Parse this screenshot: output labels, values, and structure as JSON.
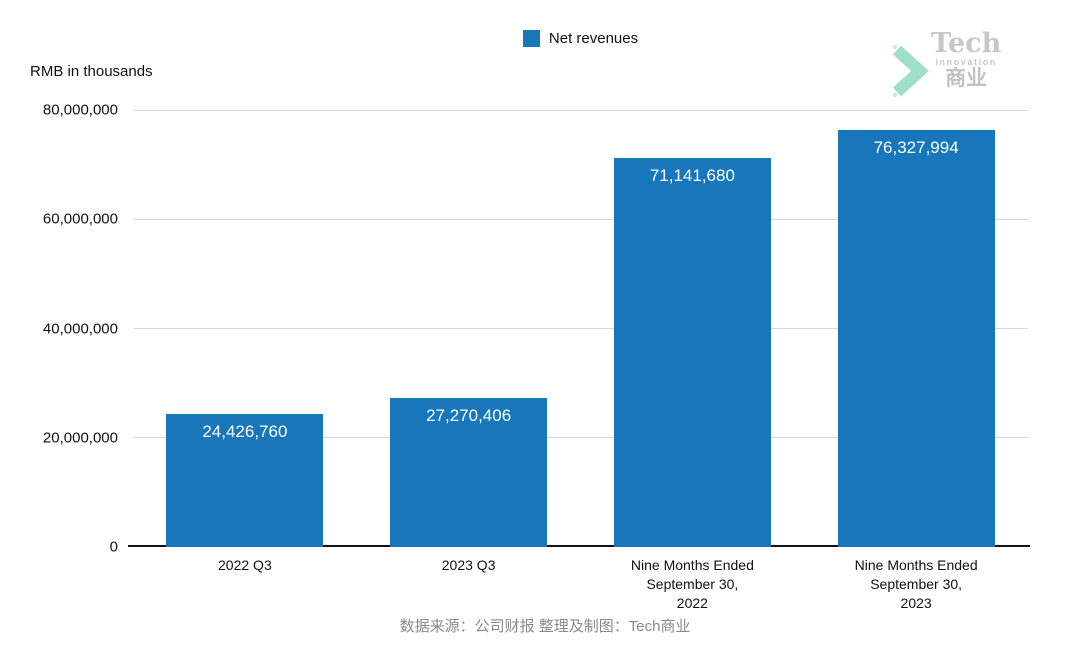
{
  "header": {
    "legend": {
      "label": "Net revenues",
      "color": "#1777ba"
    }
  },
  "logo": {
    "name": "Tech",
    "subtitle": "innovation",
    "cn": "商业",
    "chevron_color": "#9fdfca"
  },
  "chart_data": {
    "type": "bar",
    "title": "",
    "series_name": "Net revenues",
    "categories": [
      "2022 Q3",
      "2023 Q3",
      "Nine Months Ended\nSeptember 30,\n2022",
      "Nine Months Ended\nSeptember 30,\n2023"
    ],
    "values": [
      24426760,
      27270406,
      71141680,
      76327994
    ],
    "value_labels": [
      "24,426,760",
      "27,270,406",
      "71,141,680",
      "76,327,994"
    ],
    "ylabel": "RMB in thousands",
    "ylim": [
      0,
      80000000
    ],
    "yticks": [
      0,
      20000000,
      40000000,
      60000000,
      80000000
    ],
    "ytick_labels": [
      "0",
      "20,000,000",
      "40,000,000",
      "60,000,000",
      "80,000,000"
    ],
    "grid": true,
    "legend_position": "top-center",
    "bar_color": "#1777ba",
    "gridline_color": "#d9d9d9"
  },
  "footer": {
    "caption": "数据来源：公司财报 整理及制图：Tech商业"
  }
}
